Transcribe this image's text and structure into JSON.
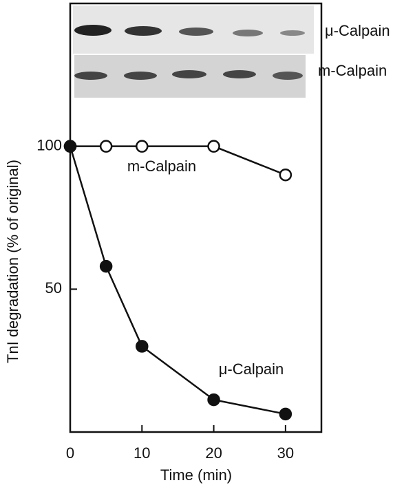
{
  "chart_data": {
    "type": "line",
    "x_label": "Time (min)",
    "y_label": "TnI degradation (% of original)",
    "x": [
      0,
      5,
      10,
      20,
      30
    ],
    "series": [
      {
        "name": "m-Calpain",
        "color": "#111111",
        "marker": "open",
        "values": [
          100,
          100,
          100,
          100,
          90
        ]
      },
      {
        "name": "μ-Calpain",
        "color": "#111111",
        "marker": "filled",
        "values": [
          100,
          58,
          30,
          11.3,
          6.3
        ]
      }
    ],
    "xlim": [
      0,
      35
    ],
    "xticks": [
      0,
      10,
      20,
      30
    ],
    "ylim": [
      0,
      150
    ],
    "yticks": [
      50,
      100
    ],
    "blot_labels": [
      "μ-Calpain",
      "m-Calpain"
    ]
  }
}
